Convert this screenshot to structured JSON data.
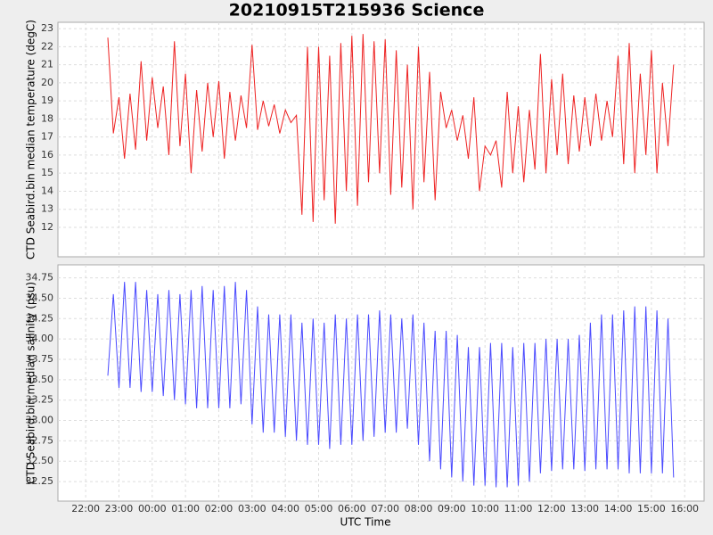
{
  "chart_data": [
    {
      "type": "line",
      "title": "20210915T215936 Science",
      "y_label": "CTD Seabird.bin median temperature (degC)",
      "color": "#ee2222",
      "x": [
        "22:40",
        "22:50",
        "23:00",
        "23:10",
        "23:20",
        "23:30",
        "23:40",
        "23:50",
        "00:00",
        "00:10",
        "00:20",
        "00:30",
        "00:40",
        "00:50",
        "01:00",
        "01:10",
        "01:20",
        "01:30",
        "01:40",
        "01:50",
        "02:00",
        "02:10",
        "02:20",
        "02:30",
        "02:40",
        "02:50",
        "03:00",
        "03:10",
        "03:20",
        "03:30",
        "03:40",
        "03:50",
        "04:00",
        "04:10",
        "04:20",
        "04:30",
        "04:40",
        "04:50",
        "05:00",
        "05:10",
        "05:20",
        "05:30",
        "05:40",
        "05:50",
        "06:00",
        "06:10",
        "06:20",
        "06:30",
        "06:40",
        "06:50",
        "07:00",
        "07:10",
        "07:20",
        "07:30",
        "07:40",
        "07:50",
        "08:00",
        "08:10",
        "08:20",
        "08:30",
        "08:40",
        "08:50",
        "09:00",
        "09:10",
        "09:20",
        "09:30",
        "09:40",
        "09:50",
        "10:00",
        "10:10",
        "10:20",
        "10:30",
        "10:40",
        "10:50",
        "11:00",
        "11:10",
        "11:20",
        "11:30",
        "11:40",
        "11:50",
        "12:00",
        "12:10",
        "12:20",
        "12:30",
        "12:40",
        "12:50",
        "13:00",
        "13:10",
        "13:20",
        "13:30",
        "13:40",
        "13:50",
        "14:00",
        "14:10",
        "14:20",
        "14:30",
        "14:40",
        "14:50",
        "15:00",
        "15:10",
        "15:20",
        "15:30",
        "15:40"
      ],
      "values": [
        22.5,
        17.2,
        19.2,
        15.8,
        19.4,
        16.3,
        21.2,
        16.8,
        20.3,
        17.5,
        19.8,
        16.0,
        22.3,
        16.5,
        20.5,
        15.0,
        19.6,
        16.2,
        20.0,
        17.0,
        20.1,
        15.8,
        19.5,
        16.8,
        19.3,
        17.5,
        22.1,
        17.4,
        19.0,
        17.6,
        18.8,
        17.2,
        18.5,
        17.8,
        18.2,
        12.7,
        22.0,
        12.3,
        22.0,
        13.5,
        21.5,
        12.2,
        22.2,
        14.0,
        22.6,
        13.2,
        22.7,
        14.5,
        22.3,
        15.0,
        22.4,
        13.8,
        21.8,
        14.2,
        21.0,
        13.0,
        22.0,
        14.5,
        20.6,
        13.5,
        19.5,
        17.5,
        18.5,
        16.8,
        18.2,
        15.8,
        19.2,
        14.0,
        16.5,
        16.0,
        16.8,
        14.2,
        19.5,
        15.0,
        18.7,
        14.5,
        18.5,
        15.2,
        21.6,
        15.0,
        20.2,
        16.0,
        20.5,
        15.5,
        19.3,
        16.2,
        19.2,
        16.5,
        19.4,
        16.8,
        19.0,
        17.0,
        21.5,
        15.5,
        22.2,
        15.0,
        20.5,
        16.0,
        21.8,
        15.0,
        20.0,
        16.5,
        21.0
      ],
      "xlim": [
        "21:10",
        "16:35"
      ],
      "ylim": [
        10.37,
        23.35
      ],
      "yticks": [
        12,
        13,
        14,
        15,
        16,
        17,
        18,
        19,
        20,
        21,
        22,
        23
      ],
      "grid": true
    },
    {
      "type": "line",
      "x_label": "UTC Time",
      "y_label": "CTD Seabird.bin median salinity (psu)",
      "color": "#4a4aff",
      "x": [
        "22:40",
        "22:50",
        "23:00",
        "23:10",
        "23:20",
        "23:30",
        "23:40",
        "23:50",
        "00:00",
        "00:10",
        "00:20",
        "00:30",
        "00:40",
        "00:50",
        "01:00",
        "01:10",
        "01:20",
        "01:30",
        "01:40",
        "01:50",
        "02:00",
        "02:10",
        "02:20",
        "02:30",
        "02:40",
        "02:50",
        "03:00",
        "03:10",
        "03:20",
        "03:30",
        "03:40",
        "03:50",
        "04:00",
        "04:10",
        "04:20",
        "04:30",
        "04:40",
        "04:50",
        "05:00",
        "05:10",
        "05:20",
        "05:30",
        "05:40",
        "05:50",
        "06:00",
        "06:10",
        "06:20",
        "06:30",
        "06:40",
        "06:50",
        "07:00",
        "07:10",
        "07:20",
        "07:30",
        "07:40",
        "07:50",
        "08:00",
        "08:10",
        "08:20",
        "08:30",
        "08:40",
        "08:50",
        "09:00",
        "09:10",
        "09:20",
        "09:30",
        "09:40",
        "09:50",
        "10:00",
        "10:10",
        "10:20",
        "10:30",
        "10:40",
        "10:50",
        "11:00",
        "11:10",
        "11:20",
        "11:30",
        "11:40",
        "11:50",
        "12:00",
        "12:10",
        "12:20",
        "12:30",
        "12:40",
        "12:50",
        "13:00",
        "13:10",
        "13:20",
        "13:30",
        "13:40",
        "13:50",
        "14:00",
        "14:10",
        "14:20",
        "14:30",
        "14:40",
        "14:50",
        "15:00",
        "15:10",
        "15:20",
        "15:30",
        "15:40"
      ],
      "values": [
        33.55,
        34.55,
        33.4,
        34.7,
        33.4,
        34.7,
        33.35,
        34.6,
        33.35,
        34.55,
        33.3,
        34.6,
        33.25,
        34.55,
        33.2,
        34.6,
        33.15,
        34.65,
        33.15,
        34.6,
        33.15,
        34.65,
        33.15,
        34.7,
        33.2,
        34.6,
        32.95,
        34.4,
        32.85,
        34.3,
        32.85,
        34.3,
        32.8,
        34.3,
        32.75,
        34.2,
        32.7,
        34.25,
        32.7,
        34.2,
        32.65,
        34.3,
        32.7,
        34.25,
        32.7,
        34.3,
        32.75,
        34.3,
        32.8,
        34.35,
        32.85,
        34.3,
        32.85,
        34.25,
        32.9,
        34.3,
        32.7,
        34.2,
        32.5,
        34.1,
        32.4,
        34.1,
        32.3,
        34.05,
        32.25,
        33.9,
        32.2,
        33.9,
        32.2,
        33.95,
        32.18,
        33.95,
        32.18,
        33.9,
        32.2,
        33.95,
        32.25,
        33.95,
        32.35,
        34.0,
        32.38,
        34.0,
        32.4,
        34.0,
        32.4,
        34.05,
        32.38,
        34.2,
        32.4,
        34.3,
        32.4,
        34.3,
        32.4,
        34.35,
        32.35,
        34.4,
        32.35,
        34.4,
        32.35,
        34.35,
        32.35,
        34.25,
        32.3
      ],
      "xlim": [
        "21:10",
        "16:35"
      ],
      "ylim": [
        32.01,
        34.91
      ],
      "yticks": [
        32.25,
        {
          "value": 32.5,
          "label": "32.50"
        },
        32.75,
        {
          "value": 33,
          "label": "33.00"
        },
        33.25,
        {
          "value": 33.5,
          "label": "33.50"
        },
        33.75,
        {
          "value": 34,
          "label": "34.00"
        },
        34.25,
        {
          "value": 34.5,
          "label": "34.50"
        },
        34.75
      ],
      "xticks": [
        "22:00",
        "23:00",
        "00:00",
        "01:00",
        "02:00",
        "03:00",
        "04:00",
        "05:00",
        "06:00",
        "07:00",
        "08:00",
        "09:00",
        "10:00",
        "11:00",
        "12:00",
        "13:00",
        "14:00",
        "15:00",
        "16:00"
      ],
      "grid": true
    }
  ]
}
